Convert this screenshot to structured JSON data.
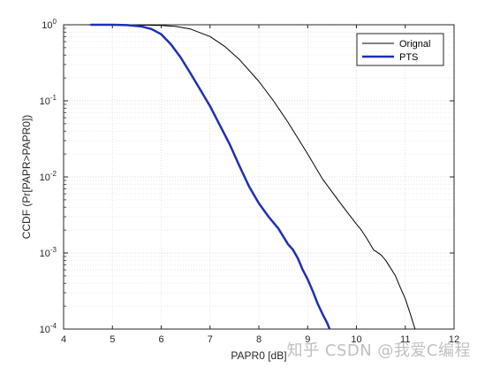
{
  "chart_data": {
    "type": "line",
    "title": "",
    "xlabel": "PAPR0 [dB]",
    "ylabel": "CCDF (Pr[PAPR>PAPR0])",
    "xlim": [
      4,
      12
    ],
    "ylim": [
      0.0001,
      1
    ],
    "yscale": "log",
    "grid": "major and minor",
    "legend_position": "top-right",
    "x_ticks": [
      "4",
      "5",
      "6",
      "7",
      "8",
      "9",
      "10",
      "11",
      "12"
    ],
    "series": [
      {
        "name": "Orignal",
        "color": "#000000",
        "line_width": 1,
        "x": [
          4.5,
          5.0,
          5.5,
          6.0,
          6.3,
          6.6,
          7.0,
          7.3,
          7.6,
          8.0,
          8.3,
          8.6,
          9.0,
          9.3,
          9.6,
          9.8,
          10.0,
          10.1,
          10.2,
          10.35,
          10.5,
          10.6,
          10.8,
          10.9,
          11.0,
          11.1,
          11.2
        ],
        "y": [
          1.0,
          1.0,
          0.995,
          0.98,
          0.95,
          0.88,
          0.7,
          0.52,
          0.35,
          0.18,
          0.1,
          0.052,
          0.02,
          0.0095,
          0.0052,
          0.0035,
          0.0024,
          0.002,
          0.0016,
          0.0011,
          0.00095,
          0.0008,
          0.0005,
          0.00035,
          0.00025,
          0.00016,
          0.0001
        ]
      },
      {
        "name": "PTS",
        "color": "#1f2fb3",
        "line_width": 2.5,
        "x": [
          4.55,
          5.0,
          5.3,
          5.6,
          5.8,
          6.0,
          6.2,
          6.4,
          6.6,
          6.8,
          7.0,
          7.2,
          7.4,
          7.6,
          7.8,
          8.0,
          8.2,
          8.4,
          8.6,
          8.7,
          8.8,
          8.9,
          9.0,
          9.1,
          9.2,
          9.3,
          9.4,
          9.45
        ],
        "y": [
          1.0,
          1.0,
          0.99,
          0.95,
          0.88,
          0.75,
          0.55,
          0.37,
          0.23,
          0.14,
          0.085,
          0.048,
          0.027,
          0.014,
          0.0075,
          0.0045,
          0.003,
          0.0021,
          0.0013,
          0.0011,
          0.00085,
          0.0006,
          0.00045,
          0.00032,
          0.00022,
          0.00016,
          0.00012,
          0.0001
        ]
      }
    ]
  },
  "watermark": "知乎 CSDN @我爱C编程"
}
